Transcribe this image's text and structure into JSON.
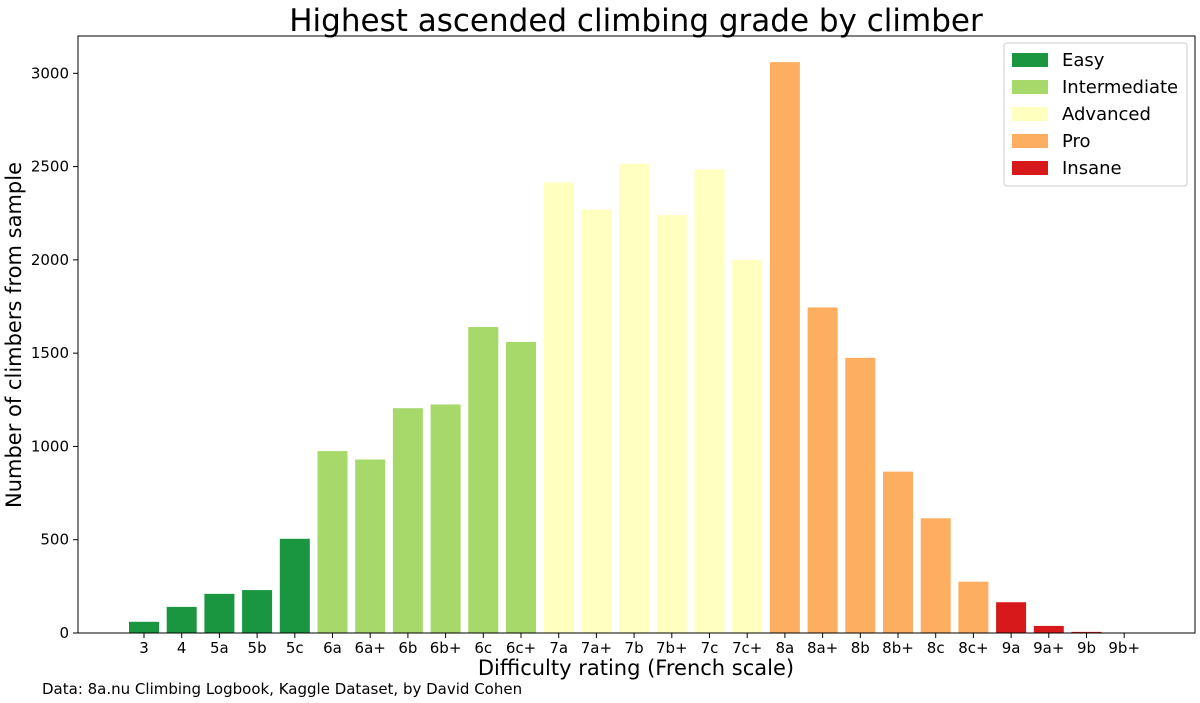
{
  "chart_data": {
    "type": "bar",
    "title": "Highest ascended climbing grade by climber",
    "xlabel": "Difficulty rating (French scale)",
    "ylabel": "Number of climbers from sample",
    "ylim": [
      0,
      3200
    ],
    "yticks": [
      0,
      500,
      1000,
      1500,
      2000,
      2500,
      3000
    ],
    "grid": false,
    "legend_position": "top-right",
    "categories": [
      "3",
      "4",
      "5a",
      "5b",
      "5c",
      "6a",
      "6a+",
      "6b",
      "6b+",
      "6c",
      "6c+",
      "7a",
      "7a+",
      "7b",
      "7b+",
      "7c",
      "7c+",
      "8a",
      "8a+",
      "8b",
      "8b+",
      "8c",
      "8c+",
      "9a",
      "9a+",
      "9b",
      "9b+"
    ],
    "values": [
      60,
      140,
      210,
      230,
      505,
      975,
      930,
      1205,
      1225,
      1640,
      1560,
      2415,
      2270,
      2515,
      2240,
      2485,
      2000,
      3060,
      1745,
      1475,
      865,
      615,
      275,
      165,
      38,
      6,
      0
    ],
    "groups": [
      "Easy",
      "Easy",
      "Easy",
      "Easy",
      "Easy",
      "Intermediate",
      "Intermediate",
      "Intermediate",
      "Intermediate",
      "Intermediate",
      "Intermediate",
      "Advanced",
      "Advanced",
      "Advanced",
      "Advanced",
      "Advanced",
      "Advanced",
      "Pro",
      "Pro",
      "Pro",
      "Pro",
      "Pro",
      "Pro",
      "Insane",
      "Insane",
      "Insane",
      "Insane"
    ],
    "legend": [
      {
        "name": "Easy",
        "color": "#1a9641"
      },
      {
        "name": "Intermediate",
        "color": "#a6d96a"
      },
      {
        "name": "Advanced",
        "color": "#ffffc0"
      },
      {
        "name": "Pro",
        "color": "#fdae61"
      },
      {
        "name": "Insane",
        "color": "#d7191c"
      }
    ]
  },
  "source_note": "Data: 8a.nu Climbing Logbook, Kaggle Dataset, by David Cohen"
}
